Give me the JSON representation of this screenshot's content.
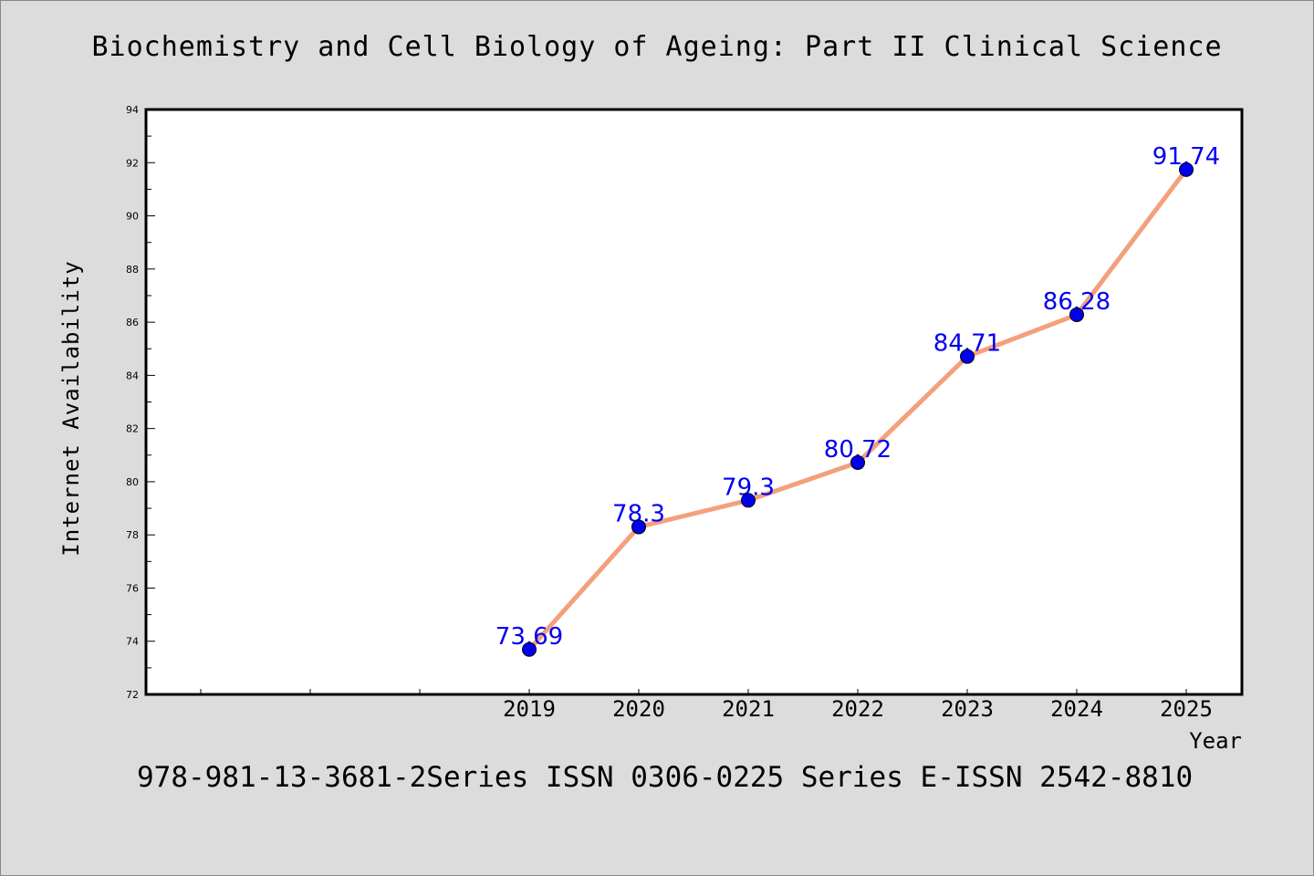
{
  "chart_data": {
    "type": "line",
    "title": "Biochemistry and Cell Biology of Ageing: Part II Clinical Science",
    "xlabel": "Year",
    "ylabel": "Internet Availability",
    "x": [
      "2019",
      "2020",
      "2021",
      "2022",
      "2023",
      "2024",
      "2025"
    ],
    "values": [
      73.69,
      78.3,
      79.3,
      80.72,
      84.71,
      86.28,
      91.74
    ],
    "data_labels": [
      "73.69",
      "78.3",
      "79.3",
      "80.72",
      "84.71",
      "86.28",
      "91.74"
    ],
    "ylim": [
      72,
      94
    ],
    "y_ticks": [
      "72",
      "74",
      "76",
      "78",
      "80",
      "82",
      "84",
      "86",
      "88",
      "90",
      "92",
      "94"
    ],
    "x_ticks": [
      "2019",
      "2020",
      "2021",
      "2022",
      "2023",
      "2024",
      "2025"
    ],
    "grid": false,
    "line_color": "#f4a07c",
    "marker_color": "#0000ee",
    "label_color": "#0000ee"
  },
  "footer": "978-981-13-3681-2Series ISSN 0306-0225 Series E-ISSN 2542-8810"
}
